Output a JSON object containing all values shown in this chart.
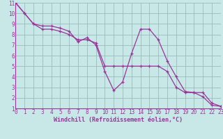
{
  "xlabel": "Windchill (Refroidissement éolien,°C)",
  "xlim": [
    0,
    23
  ],
  "ylim": [
    1,
    11
  ],
  "xticks": [
    0,
    1,
    2,
    3,
    4,
    5,
    6,
    7,
    8,
    9,
    10,
    11,
    12,
    13,
    14,
    15,
    16,
    17,
    18,
    19,
    20,
    21,
    22,
    23
  ],
  "yticks": [
    1,
    2,
    3,
    4,
    5,
    6,
    7,
    8,
    9,
    10,
    11
  ],
  "background_color": "#c8e8e8",
  "line_color": "#993399",
  "grid_color": "#99bbbb",
  "line1_x": [
    0,
    1,
    2,
    3,
    4,
    5,
    6,
    7,
    8,
    9,
    10,
    11,
    12,
    13,
    14,
    15,
    16,
    17,
    18,
    19,
    20,
    21,
    22,
    23
  ],
  "line1_y": [
    11,
    10,
    9,
    8.5,
    8.5,
    8.3,
    8.0,
    7.5,
    7.5,
    7.2,
    5.0,
    5.0,
    5.0,
    5.0,
    5.0,
    5.0,
    5.0,
    4.5,
    3.0,
    2.5,
    2.5,
    2.5,
    1.5,
    1.2
  ],
  "line2_x": [
    0,
    1,
    2,
    3,
    4,
    5,
    6,
    7,
    8,
    9,
    10,
    11,
    12,
    13,
    14,
    15,
    16,
    17,
    18,
    19,
    20,
    21,
    22,
    23
  ],
  "line2_y": [
    11,
    10,
    9,
    8.8,
    8.8,
    8.6,
    8.3,
    7.3,
    7.7,
    7.0,
    4.5,
    2.7,
    3.5,
    6.2,
    8.5,
    8.5,
    7.5,
    5.5,
    4.0,
    2.6,
    2.5,
    2.1,
    1.3,
    1.2
  ],
  "spine_color": "#993399",
  "tick_fontsize": 5.5,
  "xlabel_fontsize": 6.0
}
